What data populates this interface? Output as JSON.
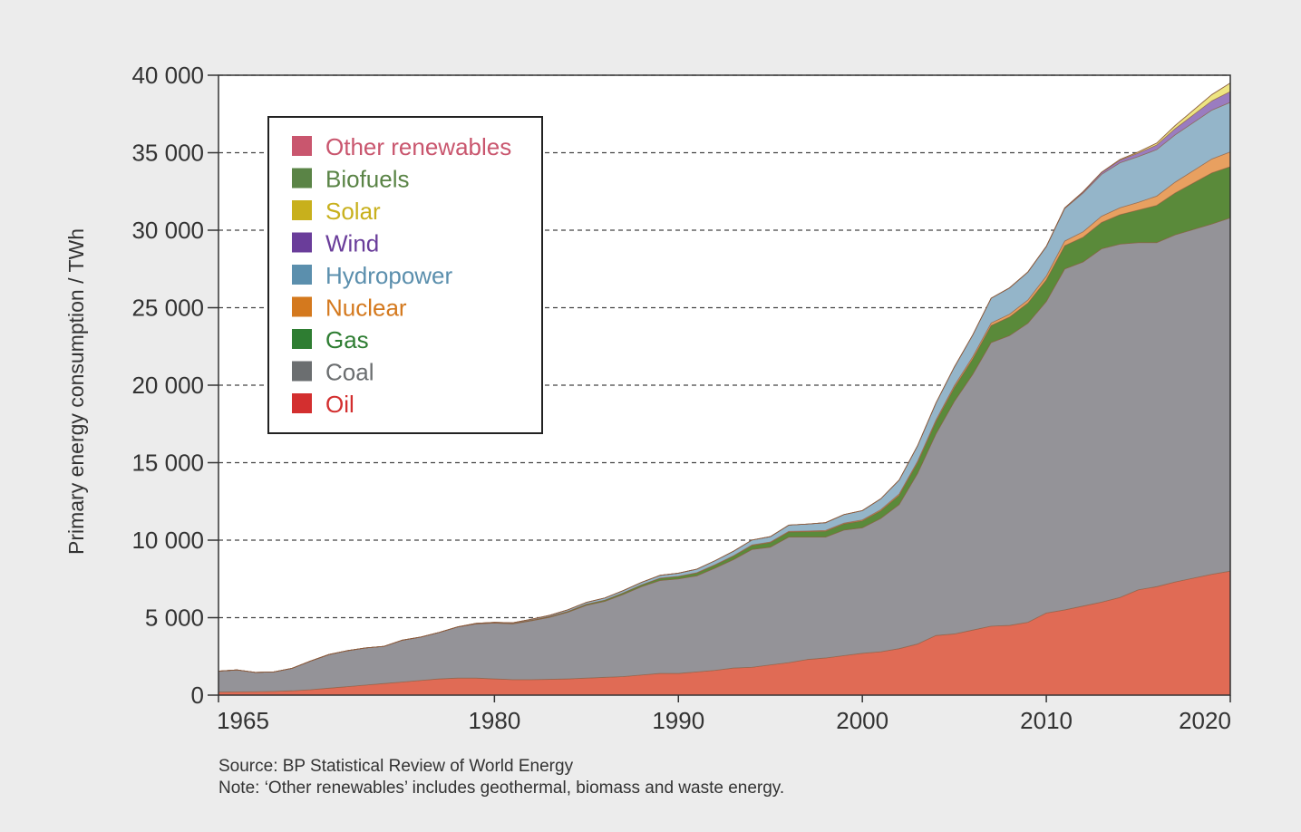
{
  "chart_data": {
    "type": "area",
    "stacked": true,
    "title": "",
    "xlabel": "",
    "ylabel": "Primary energy consumption / TWh",
    "xlim": [
      1965,
      2020
    ],
    "ylim": [
      0,
      40000
    ],
    "y_ticks": [
      0,
      5000,
      10000,
      15000,
      20000,
      25000,
      30000,
      35000,
      40000
    ],
    "y_tick_labels": [
      "0",
      "5 000",
      "10 000",
      "15 000",
      "20 000",
      "25 000",
      "30 000",
      "35 000",
      "40 000"
    ],
    "x_ticks": [
      1965,
      1980,
      1990,
      2000,
      2010,
      2020
    ],
    "x_tick_labels": [
      "1965",
      "1980",
      "1990",
      "2000",
      "2010",
      "2020"
    ],
    "grid": "horizontal dashed",
    "legend_position": "top-left",
    "x": [
      1965,
      1966,
      1967,
      1968,
      1969,
      1970,
      1971,
      1972,
      1973,
      1974,
      1975,
      1976,
      1977,
      1978,
      1979,
      1980,
      1981,
      1982,
      1983,
      1984,
      1985,
      1986,
      1987,
      1988,
      1989,
      1990,
      1991,
      1992,
      1993,
      1994,
      1995,
      1996,
      1997,
      1998,
      1999,
      2000,
      2001,
      2002,
      2003,
      2004,
      2005,
      2006,
      2007,
      2008,
      2009,
      2010,
      2011,
      2012,
      2013,
      2014,
      2015,
      2016,
      2017,
      2018,
      2019,
      2020
    ],
    "series": [
      {
        "name": "Oil",
        "color": "#e06b55",
        "legend_color": "#d32f2f",
        "values": [
          200,
          210,
          220,
          240,
          280,
          350,
          450,
          550,
          650,
          750,
          850,
          950,
          1050,
          1100,
          1100,
          1050,
          1000,
          1000,
          1020,
          1050,
          1100,
          1150,
          1200,
          1300,
          1400,
          1400,
          1500,
          1600,
          1750,
          1800,
          1950,
          2100,
          2300,
          2400,
          2550,
          2700,
          2800,
          3000,
          3300,
          3850,
          3950,
          4200,
          4450,
          4500,
          4700,
          5300,
          5500,
          5750,
          6000,
          6300,
          6800,
          7000,
          7300,
          7550,
          7800,
          8000
        ]
      },
      {
        "name": "Coal",
        "color": "#949398",
        "legend_color": "#6b6e70",
        "values": [
          1350,
          1420,
          1250,
          1260,
          1450,
          1850,
          2170,
          2320,
          2400,
          2400,
          2700,
          2800,
          3000,
          3300,
          3500,
          3600,
          3600,
          3800,
          4000,
          4300,
          4700,
          4900,
          5300,
          5700,
          6000,
          6100,
          6200,
          6600,
          7000,
          7600,
          7600,
          8100,
          7900,
          7800,
          8100,
          8100,
          8600,
          9300,
          11000,
          13000,
          15000,
          16500,
          18300,
          18700,
          19300,
          20100,
          22000,
          22200,
          22800,
          22800,
          22400,
          22200,
          22400,
          22500,
          22600,
          22800
        ]
      },
      {
        "name": "Gas",
        "color": "#5a8a3a",
        "legend_color": "#2e7d32",
        "values": [
          0,
          0,
          0,
          0,
          0,
          0,
          0,
          0,
          0,
          0,
          0,
          0,
          0,
          0,
          10,
          20,
          30,
          40,
          50,
          60,
          70,
          80,
          100,
          120,
          140,
          160,
          180,
          200,
          230,
          260,
          300,
          330,
          350,
          380,
          400,
          450,
          500,
          600,
          700,
          800,
          900,
          1000,
          1100,
          1200,
          1300,
          1400,
          1500,
          1600,
          1700,
          1900,
          2100,
          2400,
          2700,
          3000,
          3300,
          3300
        ]
      },
      {
        "name": "Nuclear",
        "color": "#e8a060",
        "legend_color": "#d4791e",
        "values": [
          0,
          0,
          0,
          0,
          0,
          0,
          0,
          0,
          0,
          0,
          0,
          0,
          0,
          0,
          0,
          0,
          0,
          0,
          0,
          0,
          0,
          0,
          0,
          0,
          10,
          10,
          20,
          20,
          20,
          30,
          30,
          40,
          40,
          50,
          50,
          60,
          70,
          80,
          90,
          100,
          120,
          140,
          160,
          180,
          200,
          240,
          300,
          350,
          400,
          450,
          500,
          600,
          700,
          800,
          900,
          950
        ]
      },
      {
        "name": "Hydropower",
        "color": "#94b5c9",
        "legend_color": "#5b8fad",
        "values": [
          0,
          0,
          0,
          0,
          0,
          0,
          0,
          0,
          0,
          0,
          0,
          0,
          0,
          10,
          20,
          30,
          40,
          60,
          80,
          100,
          120,
          140,
          150,
          160,
          180,
          200,
          230,
          260,
          290,
          320,
          350,
          400,
          450,
          500,
          550,
          600,
          700,
          900,
          1000,
          1100,
          1200,
          1400,
          1600,
          1700,
          1800,
          1900,
          2100,
          2500,
          2700,
          2900,
          2950,
          3000,
          3050,
          3100,
          3150,
          3200
        ]
      },
      {
        "name": "Wind",
        "color": "#9a7cc0",
        "legend_color": "#6a3d9a",
        "values": [
          0,
          0,
          0,
          0,
          0,
          0,
          0,
          0,
          0,
          0,
          0,
          0,
          0,
          0,
          0,
          0,
          0,
          0,
          0,
          0,
          0,
          0,
          0,
          0,
          0,
          0,
          0,
          0,
          0,
          0,
          0,
          0,
          0,
          0,
          0,
          0,
          0,
          0,
          0,
          0,
          0,
          0,
          0,
          0,
          10,
          20,
          40,
          80,
          120,
          170,
          230,
          300,
          400,
          500,
          600,
          700
        ]
      },
      {
        "name": "Solar",
        "color": "#eee582",
        "legend_color": "#c8b01c",
        "values": [
          0,
          0,
          0,
          0,
          0,
          0,
          0,
          0,
          0,
          0,
          0,
          0,
          0,
          0,
          0,
          0,
          0,
          0,
          0,
          0,
          0,
          0,
          0,
          0,
          0,
          0,
          0,
          0,
          0,
          0,
          0,
          0,
          0,
          0,
          0,
          0,
          0,
          0,
          0,
          0,
          0,
          0,
          0,
          0,
          0,
          0,
          0,
          10,
          20,
          40,
          70,
          120,
          200,
          300,
          400,
          550
        ]
      },
      {
        "name": "Biofuels",
        "color": "#6d8f4e",
        "legend_color": "#5a8446",
        "values": [
          0,
          0,
          0,
          0,
          0,
          0,
          0,
          0,
          0,
          0,
          0,
          0,
          0,
          0,
          0,
          0,
          0,
          0,
          0,
          0,
          0,
          0,
          0,
          0,
          0,
          0,
          0,
          0,
          0,
          0,
          0,
          0,
          0,
          0,
          0,
          0,
          0,
          0,
          0,
          0,
          0,
          0,
          0,
          0,
          0,
          0,
          0,
          0,
          0,
          0,
          0,
          0,
          0,
          0,
          0,
          0
        ]
      },
      {
        "name": "Other renewables",
        "color": "#c65a6e",
        "legend_color": "#c9566e",
        "values": [
          0,
          0,
          0,
          0,
          0,
          0,
          0,
          0,
          0,
          0,
          0,
          0,
          0,
          0,
          0,
          0,
          0,
          0,
          0,
          0,
          0,
          0,
          0,
          0,
          0,
          0,
          0,
          0,
          0,
          0,
          0,
          0,
          0,
          0,
          0,
          0,
          0,
          0,
          0,
          0,
          0,
          0,
          0,
          0,
          0,
          0,
          0,
          0,
          0,
          0,
          0,
          0,
          0,
          0,
          0,
          0
        ]
      }
    ],
    "legend_order": [
      "Other renewables",
      "Biofuels",
      "Solar",
      "Wind",
      "Hydropower",
      "Nuclear",
      "Gas",
      "Coal",
      "Oil"
    ]
  },
  "notes": {
    "source": "Source: BP Statistical Review of World Energy",
    "note": "Note: ‘Other renewables’ includes geothermal, biomass and waste energy."
  }
}
